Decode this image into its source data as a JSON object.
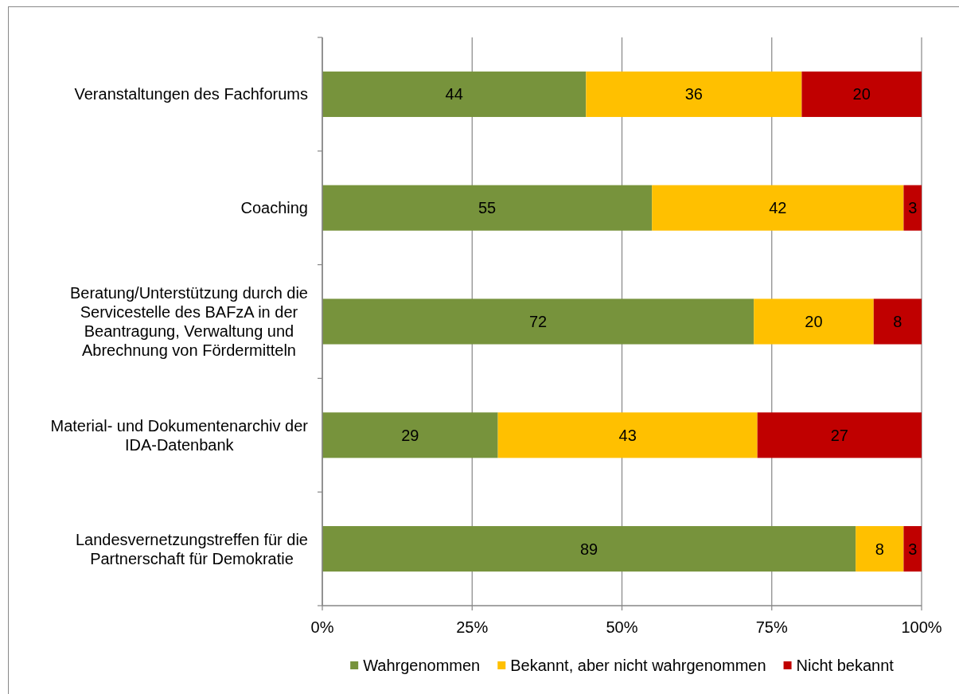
{
  "chart_data": {
    "type": "bar",
    "orientation": "horizontal",
    "stacked": true,
    "categories": [
      "Veranstaltungen des Fachforums",
      "Coaching",
      "Beratung/Unterstützung durch die Servicestelle des BAFzA in der Beantragung, Verwaltung und Abrechnung von Fördermitteln",
      "Material- und Dokumentenarchiv der IDA-Datenbank",
      "Landesvernetzungstreffen für die Partnerschaft für Demokratie"
    ],
    "series": [
      {
        "name": "Wahrgenommen",
        "color": "#77933c",
        "values": [
          44,
          55,
          72,
          29.3,
          89
        ],
        "value_labels": [
          "44",
          "55",
          "72",
          "29",
          "89"
        ]
      },
      {
        "name": "Bekannt, aber nicht wahrgenommen",
        "color": "#ffc000",
        "values": [
          36,
          42,
          20,
          43.3,
          8
        ],
        "value_labels": [
          "36",
          "42",
          "20",
          "43",
          "8"
        ]
      },
      {
        "name": "Nicht bekannt",
        "color": "#c00000",
        "values": [
          20,
          3,
          8,
          27.4,
          3
        ],
        "value_labels": [
          "20",
          "3",
          "8",
          "27",
          "3"
        ]
      }
    ],
    "xlim": [
      0,
      100
    ],
    "xticks": [
      {
        "value": 0,
        "label": "0%"
      },
      {
        "value": 25,
        "label": "25%"
      },
      {
        "value": 50,
        "label": "50%"
      },
      {
        "value": 75,
        "label": "75%"
      },
      {
        "value": 100,
        "label": "100%"
      }
    ],
    "grid": "x",
    "legend": "bottom"
  }
}
